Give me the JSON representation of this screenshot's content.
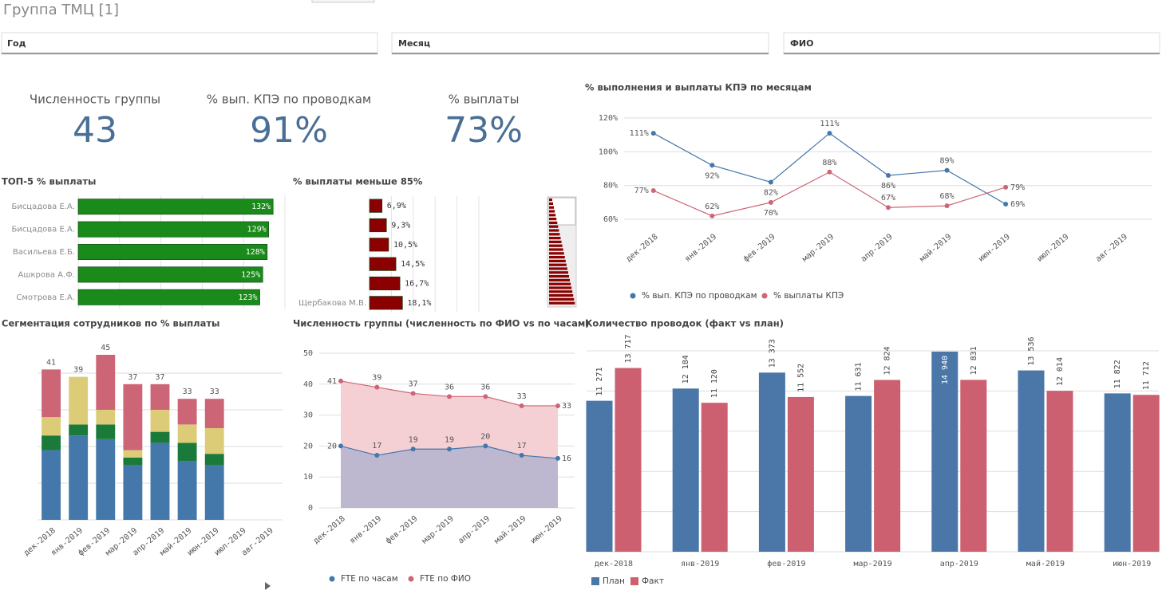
{
  "header": {
    "title": "Группа ТМЦ [1]"
  },
  "filters": [
    "Год",
    "Месяц",
    "ФИО"
  ],
  "kpis": [
    {
      "label": "Численность группы",
      "value": "43"
    },
    {
      "label": "% вып. КПЭ по проводкам",
      "value": "91%"
    },
    {
      "label": "% выплаты",
      "value": "73%"
    }
  ],
  "chart_data": [
    {
      "type": "line",
      "title": "% выполнения и выплаты КПЭ по месяцам",
      "categories": [
        "дек-2018",
        "янв-2019",
        "фев-2019",
        "мар-2019",
        "апр-2019",
        "май-2019",
        "июн-2019",
        "июл-2019",
        "авг-2019"
      ],
      "series": [
        {
          "name": "% вып. КПЭ по проводкам",
          "color": "#4477aa",
          "values": [
            111,
            92,
            82,
            111,
            86,
            89,
            69,
            null,
            null
          ],
          "value_labels": [
            "111%",
            "92%",
            "82%",
            "111%",
            "86%",
            "89%",
            "69%",
            null,
            null
          ]
        },
        {
          "name": "% выплаты КПЭ",
          "color": "#cc6677",
          "values": [
            77,
            62,
            70,
            88,
            67,
            68,
            79,
            null,
            null
          ],
          "value_labels": [
            "77%",
            "62%",
            "70%",
            "88%",
            "67%",
            "68%",
            "79%",
            null,
            null
          ]
        }
      ],
      "ylim": [
        57,
        122
      ],
      "yticks": [
        {
          "value": 60,
          "label": "60%"
        },
        {
          "value": 80,
          "label": "80%"
        },
        {
          "value": 100,
          "label": "100%"
        },
        {
          "value": 120,
          "label": "120%"
        }
      ],
      "grid": true,
      "legend": "bottom"
    },
    {
      "type": "hbar",
      "title": "ТОП-5 % выплаты",
      "categories": [
        "Бисцадова Е.А.",
        "Бисцадова Е.А.",
        "Васильева Е.Б.",
        "Ашкрова А.Ф.",
        "Смотрова Е.А."
      ],
      "values": [
        132,
        129,
        128,
        125,
        123
      ],
      "value_labels": [
        "132%",
        "129%",
        "128%",
        "125%",
        "123%"
      ],
      "color": "#1a8a1a",
      "xlim": [
        0,
        140
      ],
      "label_position": "inside"
    },
    {
      "type": "hbar",
      "title": "% выплаты меньше 85%",
      "categories": [
        null,
        null,
        null,
        null,
        null,
        "Щербакова М.В."
      ],
      "values": [
        6.9,
        9.3,
        10.5,
        14.5,
        16.7,
        18.1
      ],
      "value_labels": [
        "6,9%",
        "9,3%",
        "10,5%",
        "14,5%",
        "16,7%",
        "18,1%"
      ],
      "color": "#8b0000",
      "xlim": [
        0,
        60
      ],
      "label_position": "outside"
    },
    {
      "type": "stacked_bar",
      "title": "Сегментация сотрудников по % выплаты",
      "categories": [
        "дек-2018",
        "янв-2019",
        "фев-2019",
        "мар-2019",
        "апр-2019",
        "май-2019",
        "июн-2019",
        "июл-2019",
        "авг-2019"
      ],
      "series": [
        {
          "color": "#4477aa",
          "values": [
            19,
            23,
            22,
            15,
            21,
            16,
            15,
            null,
            null
          ]
        },
        {
          "color": "#1a7a3a",
          "values": [
            4,
            3,
            4,
            2,
            3,
            5,
            3,
            null,
            null
          ]
        },
        {
          "color": "#ddcc77",
          "values": [
            5,
            13,
            4,
            2,
            6,
            5,
            7,
            null,
            null
          ]
        },
        {
          "color": "#cc6677",
          "values": [
            13,
            0,
            15,
            18,
            7,
            7,
            8,
            null,
            null
          ]
        }
      ],
      "totals": [
        41,
        39,
        45,
        37,
        37,
        33,
        33,
        null,
        null
      ],
      "ylim": [
        0,
        50
      ],
      "yticks": [
        0,
        10,
        20,
        30,
        40
      ],
      "grid": true,
      "ytick_labels": false
    },
    {
      "type": "area",
      "title": "Численность группы (численность по ФИО vs по часам)",
      "categories": [
        "дек-2018",
        "янв-2019",
        "фев-2019",
        "мар-2019",
        "апр-2019",
        "май-2019",
        "июн-2019"
      ],
      "series": [
        {
          "name": "FTE по часам",
          "color": "#4477aa",
          "fill": "#b9b5cf",
          "values": [
            20,
            17,
            19,
            19,
            20,
            17,
            16
          ]
        },
        {
          "name": "FTE по ФИО",
          "color": "#cc6677",
          "fill": "#f3cdd3",
          "values": [
            41,
            39,
            37,
            36,
            36,
            33,
            33
          ]
        }
      ],
      "ylim": [
        0,
        50
      ],
      "yticks": [
        0,
        10,
        20,
        30,
        40,
        50
      ],
      "grid": true,
      "legend": "bottom"
    },
    {
      "type": "grouped_bar",
      "title": "Количество проводок (факт vs план)",
      "categories": [
        "дек-2018",
        "янв-2019",
        "фев-2019",
        "мар-2019",
        "апр-2019",
        "май-2019",
        "июн-2019"
      ],
      "series": [
        {
          "name": "План",
          "color": "#4a76a8",
          "values": [
            11271,
            12184,
            13373,
            11631,
            14940,
            13536,
            11822
          ],
          "value_labels": [
            "11 271",
            "12 184",
            "13 373",
            "11 631",
            "14 940",
            "13 536",
            "11 822"
          ]
        },
        {
          "name": "Факт",
          "color": "#cc6070",
          "values": [
            13717,
            11120,
            11552,
            12824,
            12831,
            12014,
            11712
          ],
          "value_labels": [
            "13 717",
            "11 120",
            "11 552",
            "12 824",
            "12 831",
            "12 014",
            "11 712"
          ]
        }
      ],
      "ylim": [
        0,
        15000
      ],
      "yticks": [
        0,
        3000,
        6000,
        9000,
        12000,
        15000
      ],
      "grid": true,
      "ytick_labels": false,
      "legend": "bottom"
    }
  ]
}
